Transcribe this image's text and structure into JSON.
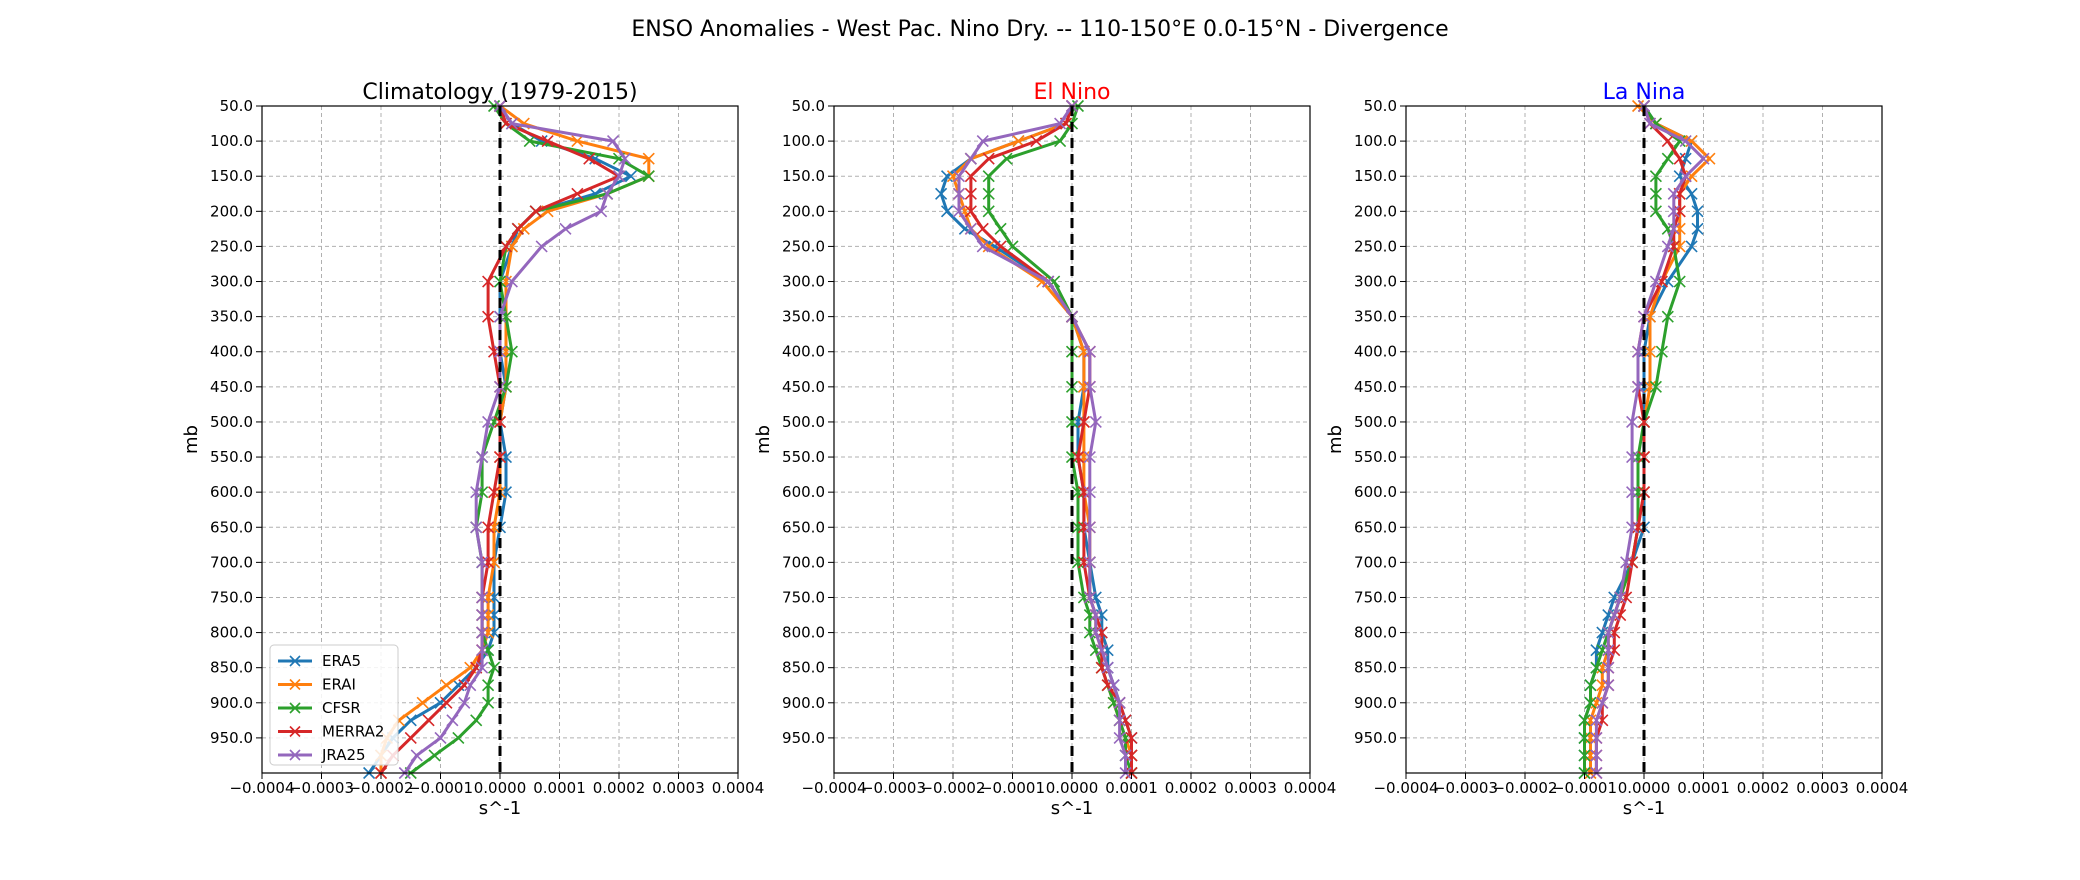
{
  "figure": {
    "suptitle": "ENSO Anomalies - West Pac. Nino Dry. -- 110-150°E 0.0-15°N - Divergence"
  },
  "colors": {
    "ERA5": "#1f77b4",
    "ERAI": "#ff7f0e",
    "CFSR": "#2ca02c",
    "MERRA2": "#d62728",
    "JRA25": "#9467bd",
    "el_nino_title": "#ff0000",
    "la_nina_title": "#0000ff",
    "default_title": "#000000"
  },
  "chart_data": [
    {
      "type": "line",
      "title": "Climatology (1979-2015)",
      "xlabel": "s^-1",
      "ylabel": "mb",
      "xlim": [
        -0.0004,
        0.0004
      ],
      "ylim": [
        1000,
        50
      ],
      "xticks": [
        "−0.0004",
        "−0.0003",
        "−0.0002",
        "−0.0001",
        "0.0000",
        "0.0001",
        "0.0002",
        "0.0003",
        "0.0004"
      ],
      "yticks": [
        "50.0",
        "100.0",
        "150.0",
        "200.0",
        "250.0",
        "300.0",
        "350.0",
        "400.0",
        "450.0",
        "500.0",
        "550.0",
        "600.0",
        "650.0",
        "700.0",
        "750.0",
        "800.0",
        "850.0",
        "900.0",
        "950.0"
      ],
      "grid": true,
      "zero_line": true,
      "legend": "lower-left",
      "y": [
        50,
        75,
        100,
        125,
        150,
        175,
        200,
        225,
        250,
        300,
        350,
        400,
        450,
        500,
        550,
        600,
        650,
        700,
        750,
        775,
        800,
        825,
        850,
        875,
        900,
        925,
        950,
        975,
        1000
      ],
      "series": [
        {
          "name": "ERA5",
          "values": [
            0.0,
            2e-05,
            7e-05,
            0.00016,
            0.00022,
            0.00016,
            6e-05,
            3e-05,
            2e-05,
            0.0,
            0.0,
            0.0,
            1e-05,
            0.0,
            1e-05,
            1e-05,
            0.0,
            -1e-05,
            -1e-05,
            -1e-05,
            -1e-05,
            -2e-05,
            -4e-05,
            -7e-05,
            -0.0001,
            -0.00015,
            -0.00018,
            -0.0002,
            -0.00022
          ]
        },
        {
          "name": "ERAI",
          "values": [
            0.0,
            4e-05,
            0.00013,
            0.00025,
            0.00025,
            0.00018,
            8e-05,
            4e-05,
            2e-05,
            1e-05,
            1e-05,
            1e-05,
            1e-05,
            0.0,
            0.0,
            0.0,
            -1e-05,
            -1e-05,
            -2e-05,
            -2e-05,
            -2e-05,
            -3e-05,
            -5e-05,
            -9e-05,
            -0.00013,
            -0.00017,
            -0.00019,
            -0.0002,
            -0.0002
          ]
        },
        {
          "name": "CFSR",
          "values": [
            -1e-05,
            1e-05,
            5e-05,
            0.0002,
            0.00025,
            0.00018,
            6e-05,
            3e-05,
            1e-05,
            0.0,
            1e-05,
            2e-05,
            1e-05,
            -1e-05,
            -3e-05,
            -3e-05,
            -4e-05,
            -3e-05,
            -3e-05,
            -3e-05,
            -3e-05,
            -2e-05,
            -1e-05,
            -2e-05,
            -2e-05,
            -4e-05,
            -7e-05,
            -0.00011,
            -0.00015
          ]
        },
        {
          "name": "MERRA2",
          "values": [
            0.0,
            1e-05,
            8e-05,
            0.00015,
            0.0002,
            0.00013,
            6e-05,
            3e-05,
            1e-05,
            -2e-05,
            -2e-05,
            -1e-05,
            0.0,
            0.0,
            0.0,
            -1e-05,
            -2e-05,
            -2e-05,
            -3e-05,
            -3e-05,
            -3e-05,
            -3e-05,
            -4e-05,
            -6e-05,
            -9e-05,
            -0.00012,
            -0.00015,
            -0.00018,
            -0.0002
          ]
        },
        {
          "name": "JRA25",
          "values": [
            0.0,
            2e-05,
            0.00019,
            0.00021,
            0.0002,
            0.00018,
            0.00017,
            0.00011,
            7e-05,
            2e-05,
            0.0,
            0.0,
            0.0,
            -2e-05,
            -3e-05,
            -4e-05,
            -4e-05,
            -3e-05,
            -3e-05,
            -3e-05,
            -3e-05,
            -3e-05,
            -3e-05,
            -5e-05,
            -6e-05,
            -8e-05,
            -0.0001,
            -0.00014,
            -0.00016
          ]
        }
      ]
    },
    {
      "type": "line",
      "title": "El Nino",
      "title_color": "el_nino_title",
      "xlabel": "s^-1",
      "ylabel": "mb",
      "xlim": [
        -0.0004,
        0.0004
      ],
      "ylim": [
        1000,
        50
      ],
      "xticks": [
        "−0.0004",
        "−0.0003",
        "−0.0002",
        "−0.0001",
        "0.0000",
        "0.0001",
        "0.0002",
        "0.0003",
        "0.0004"
      ],
      "yticks": [
        "50.0",
        "100.0",
        "150.0",
        "200.0",
        "250.0",
        "300.0",
        "350.0",
        "400.0",
        "450.0",
        "500.0",
        "550.0",
        "600.0",
        "650.0",
        "700.0",
        "750.0",
        "800.0",
        "850.0",
        "900.0",
        "950.0"
      ],
      "grid": true,
      "zero_line": true,
      "y": [
        50,
        75,
        100,
        125,
        150,
        175,
        200,
        225,
        250,
        300,
        350,
        400,
        450,
        500,
        550,
        600,
        650,
        700,
        750,
        775,
        800,
        825,
        850,
        875,
        900,
        925,
        950,
        975,
        1000
      ],
      "series": [
        {
          "name": "ERA5",
          "values": [
            0.0,
            -1e-05,
            -9e-05,
            -0.00017,
            -0.00021,
            -0.00022,
            -0.00021,
            -0.00018,
            -0.00013,
            -4e-05,
            0.0,
            2e-05,
            2e-05,
            1e-05,
            1e-05,
            2e-05,
            2e-05,
            3e-05,
            4e-05,
            5e-05,
            5e-05,
            6e-05,
            6e-05,
            7e-05,
            8e-05,
            9e-05,
            0.0001,
            0.0001,
            0.0001
          ]
        },
        {
          "name": "ERAI",
          "values": [
            0.0,
            -1e-05,
            -9e-05,
            -0.00017,
            -0.0002,
            -0.00019,
            -0.00018,
            -0.00017,
            -0.00014,
            -5e-05,
            0.0,
            2e-05,
            2e-05,
            2e-05,
            2e-05,
            2e-05,
            3e-05,
            3e-05,
            3e-05,
            4e-05,
            4e-05,
            5e-05,
            5e-05,
            6e-05,
            7e-05,
            8e-05,
            9e-05,
            0.0001,
            0.0001
          ]
        },
        {
          "name": "CFSR",
          "values": [
            1e-05,
            0.0,
            -2e-05,
            -0.00011,
            -0.00014,
            -0.00014,
            -0.00014,
            -0.00012,
            -0.0001,
            -3e-05,
            0.0,
            0.0,
            0.0,
            0.0,
            0.0,
            1e-05,
            1e-05,
            1e-05,
            2e-05,
            3e-05,
            3e-05,
            4e-05,
            5e-05,
            6e-05,
            7e-05,
            8e-05,
            9e-05,
            9e-05,
            0.0001
          ]
        },
        {
          "name": "MERRA2",
          "values": [
            0.0,
            -1e-05,
            -6e-05,
            -0.00014,
            -0.00017,
            -0.00017,
            -0.00017,
            -0.00015,
            -0.00012,
            -4e-05,
            0.0,
            3e-05,
            3e-05,
            2e-05,
            1e-05,
            2e-05,
            2e-05,
            2e-05,
            3e-05,
            4e-05,
            5e-05,
            5e-05,
            5e-05,
            6e-05,
            8e-05,
            9e-05,
            0.0001,
            0.0001,
            0.0001
          ]
        },
        {
          "name": "JRA25",
          "values": [
            0.0,
            -2e-05,
            -0.00015,
            -0.00017,
            -0.00019,
            -0.00019,
            -0.00019,
            -0.00017,
            -0.00015,
            -4e-05,
            0.0,
            3e-05,
            3e-05,
            4e-05,
            3e-05,
            3e-05,
            3e-05,
            3e-05,
            3e-05,
            4e-05,
            4e-05,
            5e-05,
            6e-05,
            7e-05,
            8e-05,
            8e-05,
            8e-05,
            9e-05,
            9e-05
          ]
        }
      ]
    },
    {
      "type": "line",
      "title": "La Nina",
      "title_color": "la_nina_title",
      "xlabel": "s^-1",
      "ylabel": "mb",
      "xlim": [
        -0.0004,
        0.0004
      ],
      "ylim": [
        1000,
        50
      ],
      "xticks": [
        "−0.0004",
        "−0.0003",
        "−0.0002",
        "−0.0001",
        "0.0000",
        "0.0001",
        "0.0002",
        "0.0003",
        "0.0004"
      ],
      "yticks": [
        "50.0",
        "100.0",
        "150.0",
        "200.0",
        "250.0",
        "300.0",
        "350.0",
        "400.0",
        "450.0",
        "500.0",
        "550.0",
        "600.0",
        "650.0",
        "700.0",
        "750.0",
        "800.0",
        "850.0",
        "900.0",
        "950.0"
      ],
      "grid": true,
      "zero_line": true,
      "y": [
        50,
        75,
        100,
        125,
        150,
        175,
        200,
        225,
        250,
        300,
        350,
        400,
        450,
        500,
        550,
        600,
        650,
        700,
        750,
        775,
        800,
        825,
        850,
        875,
        900,
        925,
        950,
        975,
        1000
      ],
      "series": [
        {
          "name": "ERA5",
          "values": [
            0.0,
            2e-05,
            8e-05,
            7e-05,
            6e-05,
            8e-05,
            9e-05,
            9e-05,
            8e-05,
            4e-05,
            1e-05,
            0.0,
            0.0,
            0.0,
            0.0,
            0.0,
            0.0,
            -2e-05,
            -5e-05,
            -6e-05,
            -7e-05,
            -8e-05,
            -8e-05,
            -9e-05,
            -9e-05,
            -0.0001,
            -0.0001,
            -0.0001,
            -0.0001
          ]
        },
        {
          "name": "ERAI",
          "values": [
            -1e-05,
            2e-05,
            8e-05,
            0.00011,
            8e-05,
            6e-05,
            6e-05,
            6e-05,
            6e-05,
            3e-05,
            1e-05,
            1e-05,
            1e-05,
            0.0,
            0.0,
            0.0,
            -1e-05,
            -2e-05,
            -4e-05,
            -5e-05,
            -6e-05,
            -6e-05,
            -7e-05,
            -7e-05,
            -8e-05,
            -9e-05,
            -9e-05,
            -9e-05,
            -9e-05
          ]
        },
        {
          "name": "CFSR",
          "values": [
            0.0,
            2e-05,
            6e-05,
            4e-05,
            2e-05,
            2e-05,
            2e-05,
            4e-05,
            5e-05,
            6e-05,
            4e-05,
            3e-05,
            2e-05,
            0.0,
            -1e-05,
            -1e-05,
            -1e-05,
            -2e-05,
            -4e-05,
            -5e-05,
            -6e-05,
            -7e-05,
            -8e-05,
            -9e-05,
            -9e-05,
            -0.0001,
            -0.0001,
            -0.0001,
            -0.0001
          ]
        },
        {
          "name": "MERRA2",
          "values": [
            0.0,
            1e-05,
            4e-05,
            6e-05,
            7e-05,
            6e-05,
            6e-05,
            5e-05,
            5e-05,
            3e-05,
            0.0,
            -1e-05,
            -1e-05,
            0.0,
            0.0,
            0.0,
            -1e-05,
            -2e-05,
            -3e-05,
            -4e-05,
            -5e-05,
            -5e-05,
            -6e-05,
            -6e-05,
            -7e-05,
            -7e-05,
            -8e-05,
            -8e-05,
            -8e-05
          ]
        },
        {
          "name": "JRA25",
          "values": [
            0.0,
            1e-05,
            7e-05,
            0.0001,
            7e-05,
            5e-05,
            5e-05,
            5e-05,
            4e-05,
            2e-05,
            0.0,
            -1e-05,
            -1e-05,
            -2e-05,
            -2e-05,
            -2e-05,
            -2e-05,
            -3e-05,
            -4e-05,
            -5e-05,
            -6e-05,
            -6e-05,
            -6e-05,
            -6e-05,
            -7e-05,
            -8e-05,
            -8e-05,
            -8e-05,
            -8e-05
          ]
        }
      ]
    }
  ]
}
